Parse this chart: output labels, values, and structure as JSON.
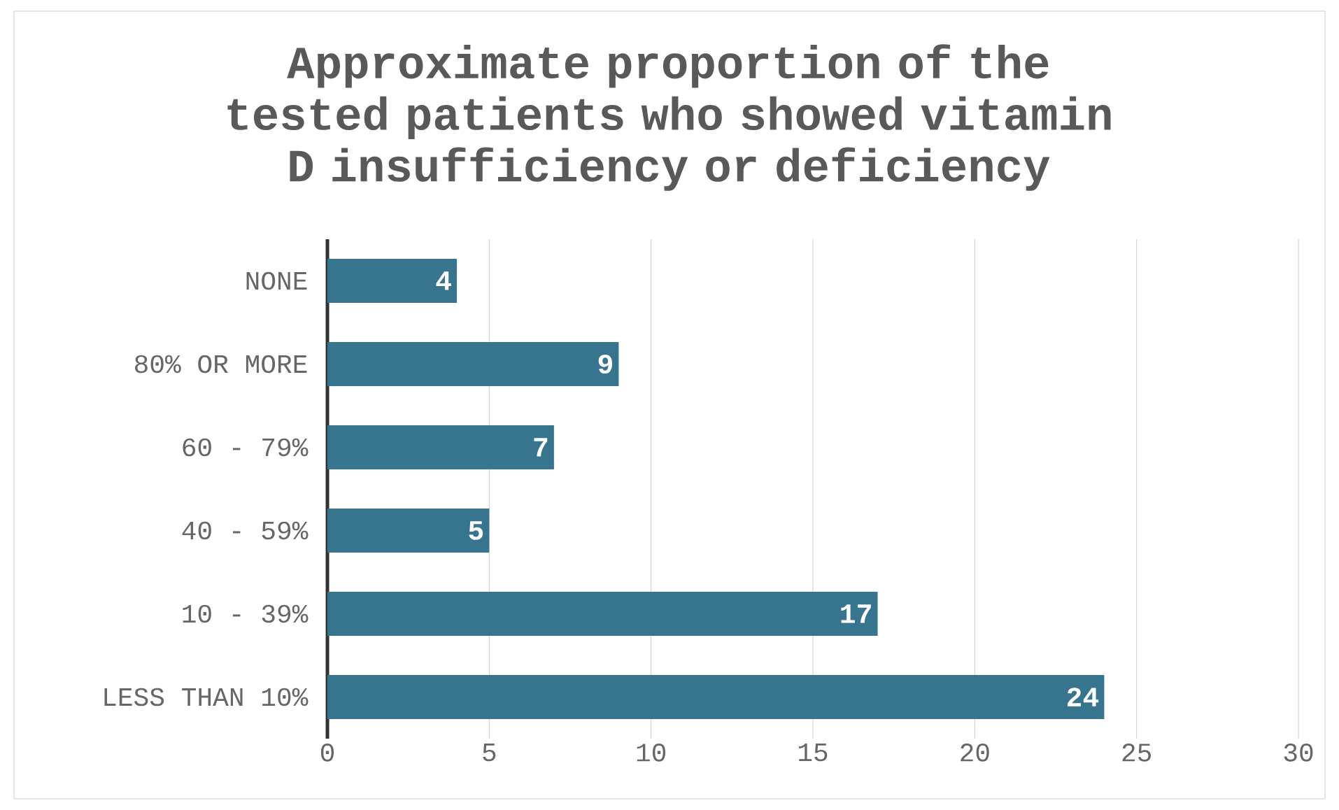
{
  "chart_data": {
    "type": "bar",
    "orientation": "horizontal",
    "title": "Approximate proportion of the tested patients who showed vitamin D insufficiency or deficiency",
    "categories": [
      "NONE",
      "80% OR MORE",
      "60 - 79%",
      "40 - 59%",
      "10 - 39%",
      "LESS THAN 10%"
    ],
    "values": [
      4,
      9,
      7,
      5,
      17,
      24
    ],
    "color": "#37758f",
    "xlim": [
      0,
      30
    ],
    "xticks": [
      0,
      5,
      10,
      15,
      20,
      25,
      30
    ],
    "grid": "x",
    "data_labels": true
  }
}
